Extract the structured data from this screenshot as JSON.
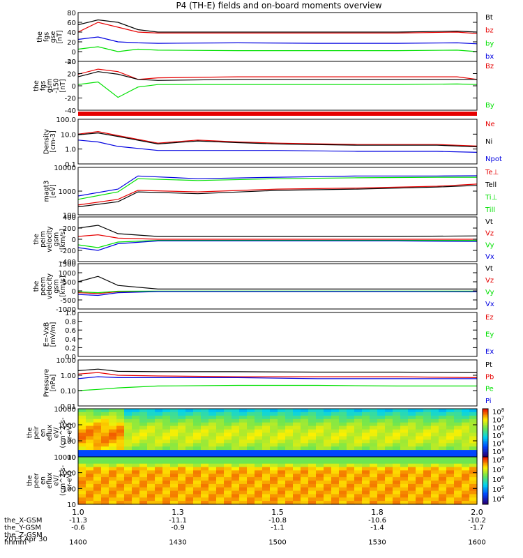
{
  "title": "P4 (TH-E) fields and on-board moments overview",
  "colors": {
    "black": "#000000",
    "red": "#e60000",
    "green": "#00e000",
    "blue": "#0000e0"
  },
  "chart_data": [
    {
      "type": "line",
      "id": "p1",
      "ylabel": [
        "the",
        "fgs",
        "gse",
        "[nT]"
      ],
      "yticks": [
        "80",
        "60",
        "40",
        "20",
        "0",
        "-20"
      ],
      "ylim": [
        -20,
        80
      ],
      "legend": [
        {
          "text": "Bt",
          "color": "black"
        },
        {
          "text": "bz",
          "color": "red"
        },
        {
          "text": "by",
          "color": "green"
        },
        {
          "text": "bx",
          "color": "blue"
        }
      ],
      "series": [
        {
          "name": "Bt",
          "color": "black",
          "x": [
            1.0,
            1.05,
            1.1,
            1.15,
            1.2,
            1.4,
            1.6,
            1.8,
            1.95,
            2.0
          ],
          "values": [
            55,
            65,
            60,
            45,
            40,
            40,
            40,
            40,
            42,
            40
          ]
        },
        {
          "name": "bz",
          "color": "red",
          "x": [
            1.0,
            1.05,
            1.1,
            1.15,
            1.2,
            1.4,
            1.6,
            1.8,
            1.95,
            2.0
          ],
          "values": [
            40,
            60,
            50,
            40,
            38,
            38,
            38,
            38,
            40,
            37
          ]
        },
        {
          "name": "by",
          "color": "green",
          "x": [
            1.0,
            1.05,
            1.1,
            1.15,
            1.2,
            1.4,
            1.6,
            1.8,
            1.95,
            2.0
          ],
          "values": [
            5,
            10,
            0,
            5,
            3,
            2,
            2,
            2,
            3,
            0
          ]
        },
        {
          "name": "bx",
          "color": "blue",
          "x": [
            1.0,
            1.05,
            1.1,
            1.15,
            1.2,
            1.4,
            1.6,
            1.8,
            1.95,
            2.0
          ],
          "values": [
            25,
            30,
            20,
            18,
            17,
            18,
            17,
            17,
            18,
            16
          ]
        }
      ]
    },
    {
      "type": "line",
      "id": "p2",
      "ylabel": [
        "the",
        "fgs",
        "gsm",
        "-150",
        "[nT]"
      ],
      "yticks": [
        "40",
        "20",
        "0",
        "-20",
        "-40"
      ],
      "ylim": [
        -55,
        40
      ],
      "legend": [
        {
          "text": "Bz",
          "color": "red"
        },
        {
          "text": "By",
          "color": "green"
        }
      ],
      "series": [
        {
          "name": "Bz",
          "color": "red",
          "x": [
            1.0,
            1.05,
            1.1,
            1.15,
            1.2,
            1.4,
            1.6,
            1.8,
            1.95,
            2.0
          ],
          "values": [
            15,
            25,
            20,
            5,
            8,
            10,
            10,
            10,
            10,
            5
          ]
        },
        {
          "name": "By",
          "color": "green",
          "x": [
            1.0,
            1.05,
            1.1,
            1.15,
            1.2,
            1.4,
            1.6,
            1.8,
            1.95,
            2.0
          ],
          "values": [
            -5,
            0,
            -30,
            -10,
            -5,
            -5,
            -5,
            -5,
            -4,
            -5
          ]
        },
        {
          "color": "black",
          "x": [
            1.0,
            1.05,
            1.1,
            1.15,
            1.2,
            1.4,
            1.6,
            1.8,
            1.95,
            2.0
          ],
          "values": [
            10,
            20,
            15,
            5,
            3,
            5,
            5,
            5,
            5,
            5
          ]
        }
      ]
    },
    {
      "type": "line",
      "id": "p3",
      "ylabel": [
        "Density",
        "[cm-3]"
      ],
      "yscale": "log",
      "yticks": [
        "100.0",
        "10.0",
        "1.0",
        "0.1"
      ],
      "ylim": [
        0.1,
        100
      ],
      "legend": [
        {
          "text": "Ne",
          "color": "red"
        },
        {
          "text": "Ni",
          "color": "black"
        },
        {
          "text": "Npot",
          "color": "blue"
        }
      ],
      "series": [
        {
          "name": "Ne",
          "color": "red",
          "x": [
            1.0,
            1.05,
            1.1,
            1.2,
            1.3,
            1.4,
            1.5,
            1.7,
            1.9,
            2.0
          ],
          "values": [
            10,
            15,
            8,
            2.5,
            4,
            3,
            2.5,
            2,
            2,
            1.6
          ]
        },
        {
          "name": "Ni",
          "color": "black",
          "x": [
            1.0,
            1.05,
            1.1,
            1.2,
            1.3,
            1.4,
            1.5,
            1.7,
            1.9,
            2.0
          ],
          "values": [
            9,
            12,
            7,
            2.2,
            3.5,
            2.7,
            2.2,
            1.8,
            1.8,
            1.4
          ]
        },
        {
          "name": "Npot",
          "color": "blue",
          "x": [
            1.0,
            1.05,
            1.1,
            1.2,
            1.3,
            1.4,
            1.5,
            1.7,
            1.9,
            2.0
          ],
          "values": [
            4,
            3,
            1.5,
            0.8,
            0.8,
            0.8,
            0.8,
            0.7,
            0.7,
            0.6
          ]
        }
      ]
    },
    {
      "type": "line",
      "id": "p4",
      "ylabel": [
        "magt3",
        "[eV]"
      ],
      "yscale": "log",
      "yticks": [
        "10000",
        "1000",
        "100"
      ],
      "ylim": [
        30,
        10000
      ],
      "legend": [
        {
          "text": "Te⊥",
          "color": "red"
        },
        {
          "text": "Tell",
          "color": "black"
        },
        {
          "text": "Ti⊥",
          "color": "green"
        },
        {
          "text": "Till",
          "color": "green"
        }
      ],
      "series": [
        {
          "name": "Te⊥",
          "color": "red",
          "x": [
            1.0,
            1.1,
            1.15,
            1.3,
            1.5,
            1.7,
            1.9,
            2.0
          ],
          "values": [
            100,
            200,
            600,
            500,
            700,
            800,
            1000,
            1300
          ]
        },
        {
          "name": "Tell",
          "color": "black",
          "x": [
            1.0,
            1.1,
            1.15,
            1.3,
            1.5,
            1.7,
            1.9,
            2.0
          ],
          "values": [
            80,
            150,
            500,
            400,
            600,
            700,
            900,
            1100
          ]
        },
        {
          "name": "Ti⊥",
          "color": "green",
          "x": [
            1.0,
            1.1,
            1.15,
            1.3,
            1.5,
            1.7,
            1.9,
            2.0
          ],
          "values": [
            200,
            500,
            2500,
            2000,
            2500,
            2800,
            3000,
            3000
          ]
        },
        {
          "color": "blue",
          "x": [
            1.0,
            1.1,
            1.15,
            1.3,
            1.5,
            1.7,
            1.9,
            2.0
          ],
          "values": [
            300,
            700,
            3500,
            2500,
            3000,
            3500,
            3500,
            3600
          ]
        }
      ]
    },
    {
      "type": "line",
      "id": "p5",
      "ylabel": [
        "the",
        "peim",
        "velocity",
        "gsm",
        "[km/s]"
      ],
      "yticks": [
        "400",
        "200",
        "0",
        "-200",
        "-400"
      ],
      "ylim": [
        -400,
        400
      ],
      "legend": [
        {
          "text": "Vt",
          "color": "black"
        },
        {
          "text": "Vz",
          "color": "red"
        },
        {
          "text": "Vy",
          "color": "green"
        },
        {
          "text": "Vx",
          "color": "blue"
        }
      ],
      "series": [
        {
          "name": "Vt",
          "color": "black",
          "x": [
            1.0,
            1.05,
            1.1,
            1.2,
            1.4,
            1.6,
            1.8,
            2.0
          ],
          "values": [
            200,
            250,
            100,
            50,
            50,
            50,
            50,
            60
          ]
        },
        {
          "name": "Vz",
          "color": "red",
          "x": [
            1.0,
            1.05,
            1.1,
            1.2,
            1.4,
            1.6,
            1.8,
            2.0
          ],
          "values": [
            50,
            80,
            20,
            0,
            0,
            0,
            0,
            0
          ]
        },
        {
          "name": "Vy",
          "color": "green",
          "x": [
            1.0,
            1.05,
            1.1,
            1.2,
            1.4,
            1.6,
            1.8,
            2.0
          ],
          "values": [
            -100,
            -150,
            -50,
            -20,
            -20,
            -20,
            -20,
            -20
          ]
        },
        {
          "name": "Vx",
          "color": "blue",
          "x": [
            1.0,
            1.05,
            1.1,
            1.2,
            1.4,
            1.6,
            1.8,
            2.0
          ],
          "values": [
            -150,
            -200,
            -80,
            -30,
            -30,
            -30,
            -30,
            -40
          ]
        }
      ]
    },
    {
      "type": "line",
      "id": "p6",
      "ylabel": [
        "the",
        "peem",
        "velocity",
        "gsm",
        "[km/s]"
      ],
      "yticks": [
        "1500",
        "1000",
        "500",
        "0",
        "-500",
        "-1000"
      ],
      "ylim": [
        -1000,
        1500
      ],
      "legend": [
        {
          "text": "Vt",
          "color": "black"
        },
        {
          "text": "Vz",
          "color": "red"
        },
        {
          "text": "Vy",
          "color": "green"
        },
        {
          "text": "Vx",
          "color": "blue"
        }
      ],
      "series": [
        {
          "name": "Vt",
          "color": "black",
          "x": [
            1.0,
            1.05,
            1.1,
            1.2,
            1.4,
            1.6,
            1.8,
            2.0
          ],
          "values": [
            500,
            800,
            300,
            100,
            100,
            100,
            100,
            100
          ]
        },
        {
          "name": "Vz",
          "color": "red",
          "x": [
            1.0,
            1.05,
            1.1,
            1.2,
            1.4,
            1.6,
            1.8,
            2.0
          ],
          "values": [
            -100,
            -150,
            -50,
            -30,
            -30,
            -30,
            -30,
            -30
          ]
        },
        {
          "name": "Vy",
          "color": "green",
          "x": [
            1.0,
            1.05,
            1.1,
            1.2,
            1.4,
            1.6,
            1.8,
            2.0
          ],
          "values": [
            -50,
            -100,
            -20,
            -10,
            -10,
            -10,
            -10,
            -10
          ]
        },
        {
          "name": "Vx",
          "color": "blue",
          "x": [
            1.0,
            1.05,
            1.1,
            1.2,
            1.4,
            1.6,
            1.8,
            2.0
          ],
          "values": [
            -200,
            -250,
            -100,
            -40,
            -40,
            -40,
            -40,
            -50
          ]
        }
      ]
    },
    {
      "type": "line",
      "id": "p7",
      "ylabel": [
        "E=-VxB",
        "[mV/m]"
      ],
      "yticks": [
        "1.0",
        "0.8",
        "0.6",
        "0.4",
        "0.2",
        "0.0"
      ],
      "ylim": [
        0,
        1
      ],
      "legend": [
        {
          "text": "Ez",
          "color": "red"
        },
        {
          "text": "Ey",
          "color": "green"
        },
        {
          "text": "Ex",
          "color": "blue"
        }
      ],
      "series": []
    },
    {
      "type": "line",
      "id": "p8",
      "ylabel": [
        "Pressure",
        "[nPa]"
      ],
      "yscale": "log",
      "yticks": [
        "10.00",
        "1.00",
        "0.10",
        "0.01"
      ],
      "ylim": [
        0.01,
        10
      ],
      "legend": [
        {
          "text": "Pt",
          "color": "black"
        },
        {
          "text": "Pb",
          "color": "red"
        },
        {
          "text": "Pe",
          "color": "green"
        },
        {
          "text": "Pi",
          "color": "blue"
        }
      ],
      "series": [
        {
          "name": "Pt",
          "color": "black",
          "x": [
            1.0,
            1.05,
            1.1,
            1.2,
            1.4,
            1.6,
            1.8,
            2.0
          ],
          "values": [
            2,
            2.5,
            1.8,
            1.7,
            1.7,
            1.6,
            1.6,
            1.5
          ]
        },
        {
          "name": "Pb",
          "color": "red",
          "x": [
            1.0,
            1.05,
            1.1,
            1.2,
            1.4,
            1.6,
            1.8,
            2.0
          ],
          "values": [
            1.2,
            1.5,
            1.0,
            0.9,
            0.8,
            0.8,
            0.8,
            0.7
          ]
        },
        {
          "name": "Pe",
          "color": "green",
          "x": [
            1.0,
            1.05,
            1.1,
            1.2,
            1.4,
            1.6,
            1.8,
            2.0
          ],
          "values": [
            0.1,
            0.12,
            0.15,
            0.2,
            0.22,
            0.22,
            0.2,
            0.2
          ]
        },
        {
          "name": "Pi",
          "color": "blue",
          "x": [
            1.0,
            1.05,
            1.1,
            1.2,
            1.4,
            1.6,
            1.8,
            2.0
          ],
          "values": [
            0.6,
            0.8,
            0.7,
            0.7,
            0.7,
            0.6,
            0.6,
            0.6
          ]
        }
      ]
    },
    {
      "type": "heatmap",
      "id": "p9",
      "ylabel": [
        "the",
        "peir",
        "en",
        "eflux",
        "eV/",
        "(cm^2-s-",
        "sr-eV)"
      ],
      "yticks": [
        "10000",
        "1000",
        "100",
        "10"
      ],
      "yscale": "log",
      "colorbar": {
        "ticks": [
          "10^8",
          "10^7",
          "10^6",
          "10^5",
          "10^4",
          "10^3"
        ]
      }
    },
    {
      "type": "heatmap",
      "id": "p10",
      "ylabel": [
        "the",
        "peer",
        "en",
        "eflux",
        "eV/",
        "(cm^2-s-",
        "sr-eV)"
      ],
      "yticks": [
        "10000",
        "1000",
        "100",
        "10"
      ],
      "yscale": "log",
      "colorbar": {
        "ticks": [
          "10^8",
          "10^7",
          "10^6",
          "10^5",
          "10^4"
        ]
      }
    }
  ],
  "xaxis": {
    "ticks": [
      "1.0",
      "1.3",
      "1.5",
      "1.8",
      "2.0"
    ],
    "rows": [
      {
        "label": "the_X-GSM",
        "values": [
          "-11.3",
          "-11.1",
          "-10.8",
          "-10.6",
          "-10.2"
        ]
      },
      {
        "label": "the_Y-GSM",
        "values": [
          "-0.6",
          "-0.9",
          "-1.1",
          "-1.4",
          "-1.7"
        ]
      },
      {
        "label": "the_Z-GSM",
        "values": []
      },
      {
        "label": "hhmm",
        "values": [
          "1400",
          "1430",
          "1500",
          "1530",
          "1600"
        ]
      }
    ],
    "date": "2013 Apr 30"
  }
}
